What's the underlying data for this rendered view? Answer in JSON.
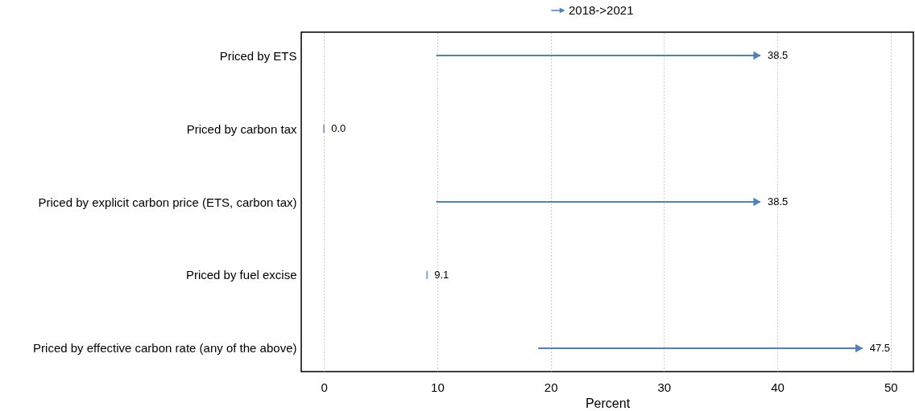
{
  "chart_data": {
    "type": "bar",
    "orientation": "horizontal",
    "legend_title": null,
    "categories": [
      "Priced by ETS",
      "Priced by carbon tax",
      "Priced by explicit carbon price (ETS, carbon tax)",
      "Priced by fuel excise",
      "Priced by effective carbon rate (any of the above)"
    ],
    "series": [
      {
        "name": "2018->2021",
        "color": "#4f81bd",
        "base": [
          9.9,
          0,
          9.9,
          9.1,
          18.9
        ],
        "values": [
          28.6,
          0,
          28.6,
          0,
          28.6
        ],
        "value_labels": [
          "38.5",
          "0.0",
          "38.5",
          "9.1",
          "47.5"
        ]
      }
    ],
    "xlabel": "Percent",
    "xlim": [
      -2,
      52
    ],
    "xticks": [
      0,
      10,
      20,
      30,
      40,
      50
    ],
    "grid": "x",
    "legend": "top"
  }
}
